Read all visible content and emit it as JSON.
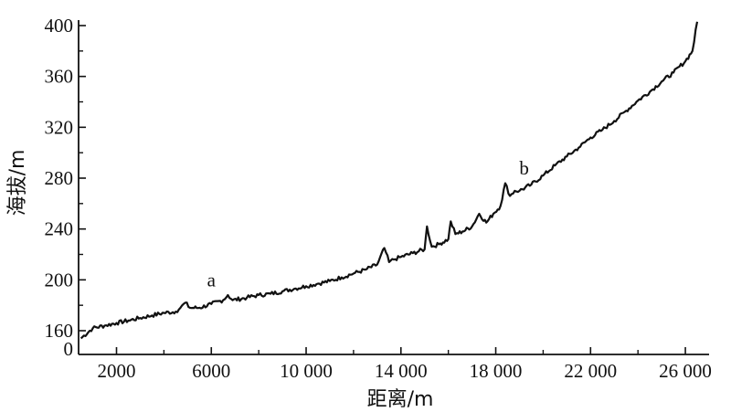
{
  "chart_data": {
    "type": "line",
    "title": "",
    "xlabel": "距离/m",
    "ylabel": "海拔/m",
    "xlim": [
      400,
      27000
    ],
    "ylim": [
      160,
      405
    ],
    "y_axis_zero_label": "0",
    "x_ticks": [
      {
        "value": 2000,
        "label": "2000"
      },
      {
        "value": 6000,
        "label": "6000"
      },
      {
        "value": 10000,
        "label": "10 000"
      },
      {
        "value": 14000,
        "label": "14 000"
      },
      {
        "value": 18000,
        "label": "18 000"
      },
      {
        "value": 22000,
        "label": "22 000"
      },
      {
        "value": 26000,
        "label": "26 000"
      }
    ],
    "y_ticks": [
      {
        "value": 160,
        "label": "160"
      },
      {
        "value": 200,
        "label": "200"
      },
      {
        "value": 240,
        "label": "240"
      },
      {
        "value": 280,
        "label": "280"
      },
      {
        "value": 320,
        "label": "320"
      },
      {
        "value": 360,
        "label": "360"
      },
      {
        "value": 400,
        "label": "400"
      }
    ],
    "grid": false,
    "series": [
      {
        "color": "#111111",
        "x": [
          500,
          1000,
          1500,
          2000,
          2500,
          3000,
          3500,
          4000,
          4500,
          4700,
          4900,
          5100,
          5500,
          6000,
          6500,
          6700,
          6900,
          7500,
          8000,
          8500,
          9000,
          9500,
          10000,
          10500,
          11000,
          11500,
          12000,
          12500,
          13000,
          13300,
          13500,
          13700,
          14000,
          14500,
          15000,
          15100,
          15300,
          15600,
          16000,
          16100,
          16300,
          16600,
          17000,
          17300,
          17600,
          17900,
          18200,
          18400,
          18600,
          18800,
          19000,
          19500,
          20000,
          20500,
          21000,
          21500,
          22000,
          22500,
          23000,
          23500,
          24000,
          24500,
          25000,
          25500,
          26000,
          26300,
          26500
        ],
        "y": [
          154,
          162,
          164,
          166,
          168,
          170,
          172,
          174,
          175,
          178,
          182,
          178,
          178,
          181,
          184,
          188,
          184,
          186,
          188,
          189,
          191,
          193,
          195,
          197,
          199,
          202,
          205,
          208,
          212,
          225,
          214,
          216,
          218,
          221,
          224,
          242,
          226,
          228,
          232,
          246,
          236,
          238,
          242,
          252,
          245,
          252,
          258,
          276,
          266,
          270,
          270,
          275,
          282,
          290,
          297,
          304,
          312,
          318,
          325,
          333,
          341,
          348,
          356,
          363,
          372,
          380,
          403
        ]
      }
    ],
    "annotations": [
      {
        "text": "a",
        "x": 6000,
        "y": 195
      },
      {
        "text": "b",
        "x": 19200,
        "y": 283
      }
    ]
  }
}
